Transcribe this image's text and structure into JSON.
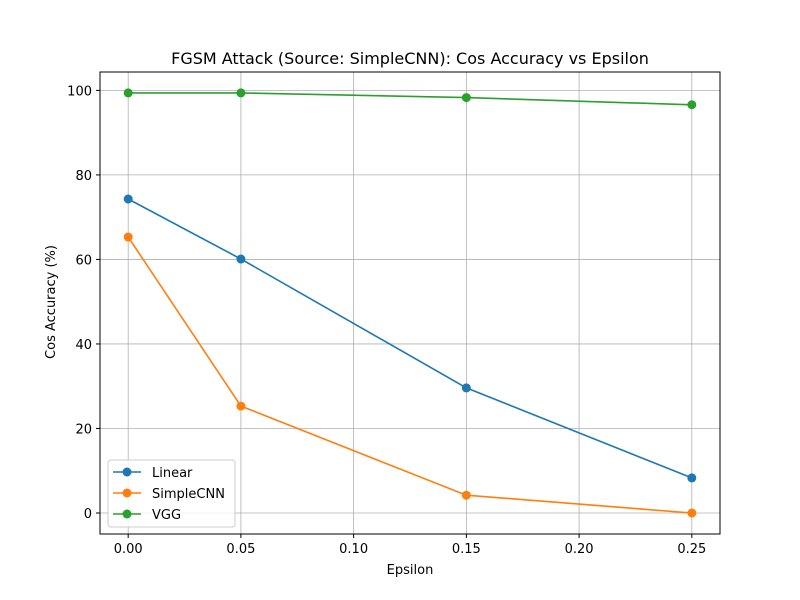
{
  "chart_data": {
    "type": "line",
    "title": "FGSM Attack (Source: SimpleCNN): Cos Accuracy vs Epsilon",
    "xlabel": "Epsilon",
    "ylabel": "Cos Accuracy (%)",
    "xlim": [
      -0.0125,
      0.2625
    ],
    "ylim": [
      -4.97,
      104.35
    ],
    "x_ticks": [
      0.0,
      0.05,
      0.1,
      0.15,
      0.2,
      0.25
    ],
    "x_tick_labels": [
      "0.00",
      "0.05",
      "0.10",
      "0.15",
      "0.20",
      "0.25"
    ],
    "y_ticks": [
      0,
      20,
      40,
      60,
      80,
      100
    ],
    "y_tick_labels": [
      "0",
      "20",
      "40",
      "60",
      "80",
      "100"
    ],
    "grid": true,
    "legend_position": "lower-left",
    "series": [
      {
        "name": "Linear",
        "color": "#1f77b4",
        "x": [
          0.0,
          0.05,
          0.15,
          0.25
        ],
        "y": [
          74.3,
          60.1,
          29.6,
          8.3
        ]
      },
      {
        "name": "SimpleCNN",
        "color": "#ff7f0e",
        "x": [
          0.0,
          0.05,
          0.15,
          0.25
        ],
        "y": [
          65.3,
          25.3,
          4.2,
          0.0
        ]
      },
      {
        "name": "VGG",
        "color": "#2ca02c",
        "x": [
          0.0,
          0.05,
          0.15,
          0.25
        ],
        "y": [
          99.4,
          99.4,
          98.3,
          96.6
        ]
      }
    ]
  }
}
